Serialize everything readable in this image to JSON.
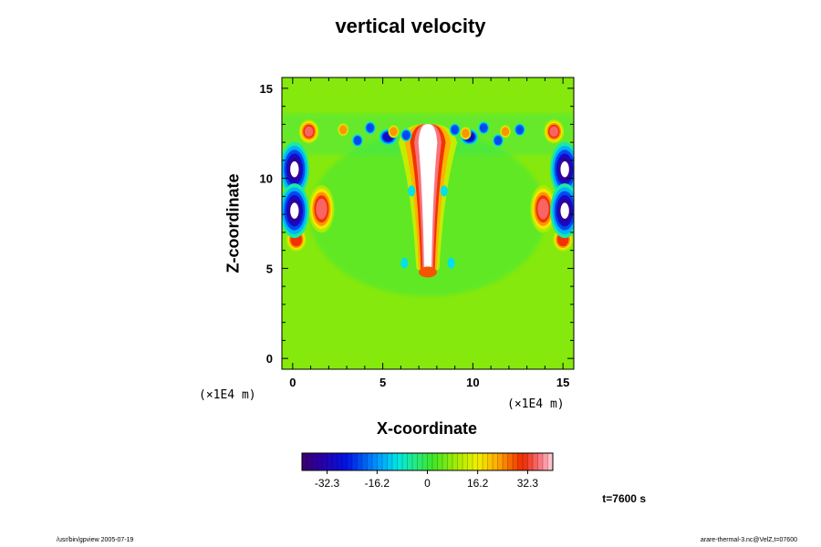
{
  "chart_data": {
    "type": "heatmap",
    "title": "vertical velocity",
    "xlabel": "X-coordinate",
    "ylabel": "Z-coordinate",
    "x_unit": "(×1E4 m)",
    "z_unit": "(×1E4 m)",
    "xlim": [
      -0.6,
      15.6
    ],
    "ylim": [
      -0.6,
      15.6
    ],
    "x_ticks": [
      0,
      5,
      10,
      15
    ],
    "y_ticks": [
      0,
      5,
      10,
      15
    ],
    "colorbar": {
      "range": [
        -40.4,
        40.4
      ],
      "tick_values": [
        -32.3,
        -16.2,
        0,
        16.2,
        32.3
      ],
      "tick_labels": [
        "-32.3",
        "-16.2",
        "0",
        "16.2",
        "32.3"
      ]
    },
    "background_value": 7,
    "features": [
      {
        "kind": "updraft_core",
        "x": 7.5,
        "z_bottom": 5.0,
        "z_top": 12.5,
        "value": 40.4
      },
      {
        "kind": "updraft",
        "x": 1.6,
        "z": 8.3,
        "value": 38
      },
      {
        "kind": "updraft",
        "x": 13.9,
        "z": 8.3,
        "value": 38
      },
      {
        "kind": "updraft",
        "x": 0.9,
        "z": 12.6,
        "value": 36
      },
      {
        "kind": "updraft",
        "x": 14.5,
        "z": 12.6,
        "value": 36
      },
      {
        "kind": "updraft",
        "x": 0.2,
        "z": 6.6,
        "value": 30
      },
      {
        "kind": "updraft",
        "x": 15.0,
        "z": 6.6,
        "value": 30
      },
      {
        "kind": "downdraft",
        "x": 0.1,
        "z": 10.5,
        "value": -40.4
      },
      {
        "kind": "downdraft",
        "x": 15.1,
        "z": 10.5,
        "value": -40.4
      },
      {
        "kind": "downdraft",
        "x": 0.1,
        "z": 8.2,
        "value": -40.4
      },
      {
        "kind": "downdraft",
        "x": 15.1,
        "z": 8.2,
        "value": -40.4
      },
      {
        "kind": "downdraft",
        "x": 5.3,
        "z": 12.3,
        "value": -30
      },
      {
        "kind": "downdraft",
        "x": 9.8,
        "z": 12.3,
        "value": -30
      }
    ],
    "time_label": "t=7600 s"
  },
  "footer": {
    "left": "/usr/bin/gpview 2005-07-19",
    "right": "arare-thermal-3.nc@VelZ,t=07600"
  }
}
